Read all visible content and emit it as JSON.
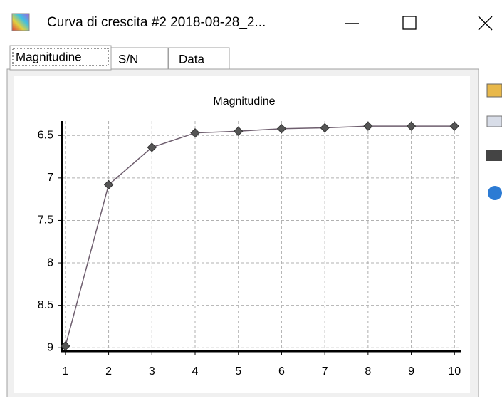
{
  "window": {
    "title": "Curva di crescita #2 2018-08-28_2...",
    "tabs": [
      "Magnitudine",
      "S/N",
      "Data"
    ]
  },
  "chart_data": {
    "type": "line",
    "title": "Magnitudine",
    "x": [
      1,
      2,
      3,
      4,
      5,
      6,
      7,
      8,
      9,
      10
    ],
    "series": [
      {
        "color": "#6e5e6e",
        "values": [
          8.98,
          7.08,
          6.64,
          6.47,
          6.45,
          6.42,
          6.41,
          6.39,
          6.39,
          6.39
        ]
      }
    ],
    "xlim": [
      0.92,
      10.16
    ],
    "xticks": [
      1,
      2,
      3,
      4,
      5,
      6,
      7,
      8,
      9,
      10
    ],
    "ylim": [
      6.33,
      9.04
    ],
    "yticks": [
      6.5,
      7,
      7.5,
      8,
      8.5,
      9
    ],
    "y_inverted": true,
    "grid": true
  }
}
